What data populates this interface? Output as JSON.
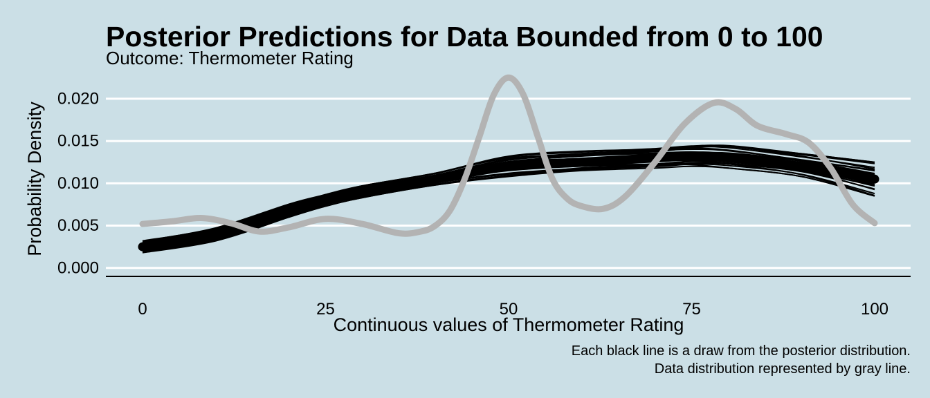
{
  "chart_data": {
    "type": "line",
    "title": "Posterior Predictions for Data Bounded from 0 to 100",
    "subtitle": "Outcome: Thermometer Rating",
    "xlabel": "Continuous values of Thermometer Rating",
    "ylabel": "Probability Density",
    "caption": [
      "Each black line is a draw from the posterior distribution.",
      "Data distribution represented by gray line."
    ],
    "xlim": [
      0,
      100
    ],
    "ylim": [
      -0.001,
      0.0235
    ],
    "x_ticks": [
      0,
      25,
      50,
      75,
      100
    ],
    "x_tick_labels": [
      "0",
      "25",
      "50",
      "75",
      "100"
    ],
    "y_ticks": [
      0,
      0.005,
      0.01,
      0.015,
      0.02
    ],
    "y_tick_labels": [
      "0.000",
      "0.005",
      "0.010",
      "0.015",
      "0.020"
    ],
    "grid": "horizontal",
    "colors": {
      "background": "#cbdfe6",
      "gridline": "#ffffff",
      "posterior_draws": "#000000",
      "data_line": "#b3b3b3"
    },
    "series": [
      {
        "role": "posterior_draws",
        "color": "#000000",
        "x": [
          0,
          10,
          20,
          25,
          30,
          40,
          50,
          60,
          70,
          75,
          80,
          90,
          100
        ],
        "y_mean": [
          0.0025,
          0.004,
          0.0068,
          0.008,
          0.009,
          0.0105,
          0.012,
          0.0125,
          0.013,
          0.0132,
          0.013,
          0.012,
          0.0105
        ],
        "band_low": [
          0.0018,
          0.0032,
          0.006,
          0.0073,
          0.0083,
          0.0098,
          0.0108,
          0.0115,
          0.0118,
          0.012,
          0.0118,
          0.0108,
          0.0085
        ],
        "band_high": [
          0.0032,
          0.0048,
          0.0076,
          0.0087,
          0.0097,
          0.0112,
          0.0132,
          0.0138,
          0.0142,
          0.0145,
          0.0145,
          0.0135,
          0.0125
        ]
      },
      {
        "role": "data_distribution",
        "color": "#b3b3b3",
        "x": [
          0,
          4,
          8,
          12,
          16,
          20,
          25,
          30,
          35,
          38,
          40,
          42,
          44,
          46,
          48,
          50,
          52,
          54,
          56,
          58,
          60,
          63,
          66,
          70,
          74,
          78,
          81,
          84,
          88,
          91,
          94,
          97,
          100
        ],
        "y": [
          0.0052,
          0.0055,
          0.0059,
          0.0053,
          0.0043,
          0.0048,
          0.0058,
          0.0052,
          0.0041,
          0.0043,
          0.005,
          0.0068,
          0.0105,
          0.0155,
          0.0205,
          0.0225,
          0.0205,
          0.0155,
          0.0105,
          0.0082,
          0.0073,
          0.007,
          0.0085,
          0.0125,
          0.017,
          0.0195,
          0.0188,
          0.0168,
          0.0158,
          0.0148,
          0.0118,
          0.0075,
          0.0053
        ]
      }
    ]
  }
}
